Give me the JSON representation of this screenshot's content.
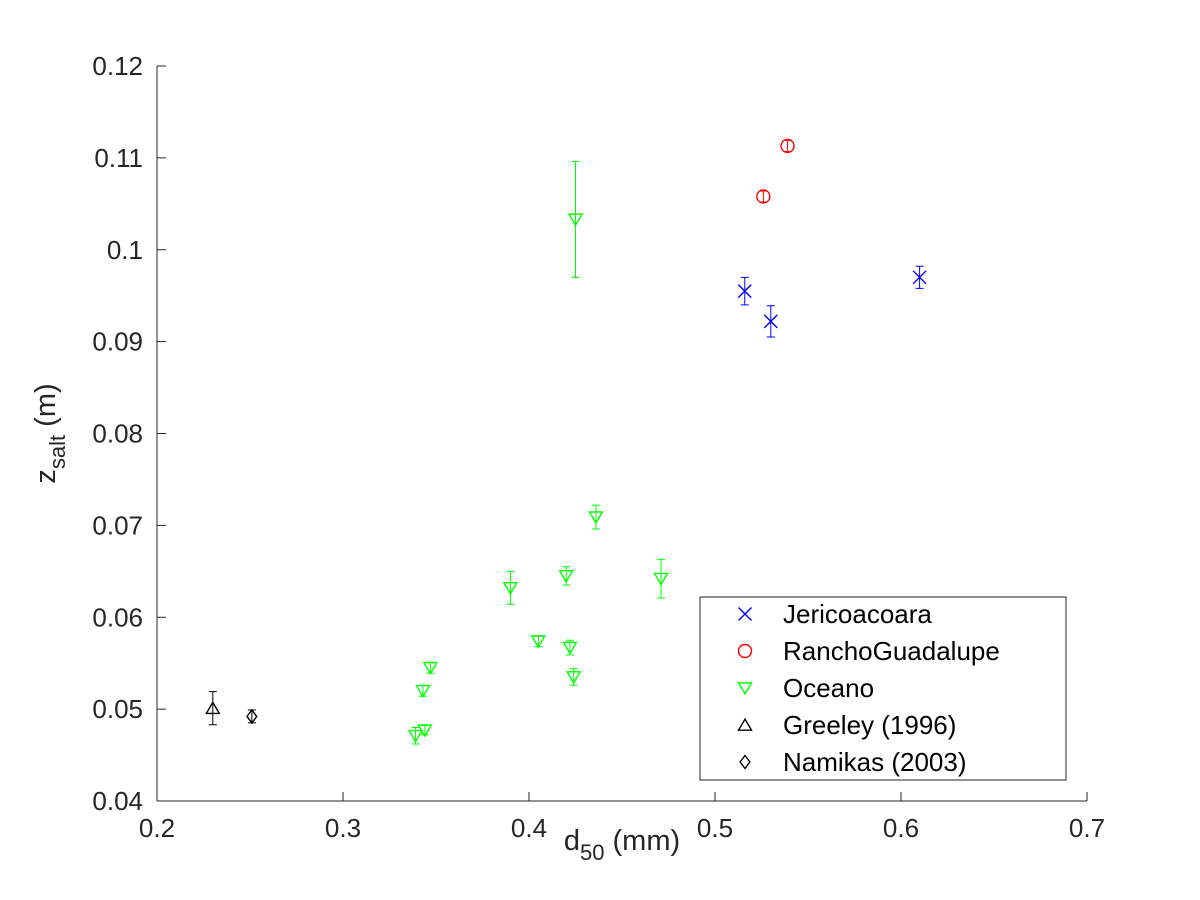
{
  "chart_data": {
    "type": "scatter",
    "xlabel": {
      "main": "d",
      "sub": "50",
      "rest": " (mm)"
    },
    "ylabel": {
      "main": "z",
      "sub": "salt",
      "rest": " (m)"
    },
    "xlim": [
      0.2,
      0.7
    ],
    "ylim": [
      0.04,
      0.12
    ],
    "xticks": [
      0.2,
      0.3,
      0.4,
      0.5,
      0.6,
      0.7
    ],
    "yticks": [
      0.04,
      0.05,
      0.06,
      0.07,
      0.08,
      0.09,
      0.1,
      0.11,
      0.12
    ],
    "xtick_labels": [
      "0.2",
      "0.3",
      "0.4",
      "0.5",
      "0.6",
      "0.7"
    ],
    "ytick_labels": [
      "0.04",
      "0.05",
      "0.06",
      "0.07",
      "0.08",
      "0.09",
      "0.1",
      "0.11",
      "0.12"
    ],
    "grid": false,
    "legend_position": "bottom-right",
    "series": [
      {
        "name": "Jericoacoara",
        "marker": "x",
        "color": "#0000ff",
        "points": [
          {
            "x": 0.516,
            "y": 0.0955,
            "err": 0.0015
          },
          {
            "x": 0.53,
            "y": 0.0922,
            "err": 0.0017
          },
          {
            "x": 0.61,
            "y": 0.097,
            "err": 0.0012
          }
        ]
      },
      {
        "name": "RanchoGuadalupe",
        "marker": "circle",
        "color": "#ff0000",
        "points": [
          {
            "x": 0.526,
            "y": 0.1058,
            "err": 0.0006
          },
          {
            "x": 0.539,
            "y": 0.1113,
            "err": 0.0006
          }
        ]
      },
      {
        "name": "Oceano",
        "marker": "triangle-down",
        "color": "#00ff00",
        "points": [
          {
            "x": 0.425,
            "y": 0.1033,
            "err": 0.0063
          },
          {
            "x": 0.436,
            "y": 0.0709,
            "err": 0.0013
          },
          {
            "x": 0.39,
            "y": 0.0632,
            "err": 0.0018
          },
          {
            "x": 0.42,
            "y": 0.0645,
            "err": 0.001
          },
          {
            "x": 0.471,
            "y": 0.0642,
            "err": 0.0021
          },
          {
            "x": 0.405,
            "y": 0.0574,
            "err": 0.0006
          },
          {
            "x": 0.422,
            "y": 0.0567,
            "err": 0.0008
          },
          {
            "x": 0.424,
            "y": 0.0535,
            "err": 0.0009
          },
          {
            "x": 0.347,
            "y": 0.0545,
            "err": 0.0006
          },
          {
            "x": 0.343,
            "y": 0.052,
            "err": 0.0006
          },
          {
            "x": 0.344,
            "y": 0.0477,
            "err": 0.0005
          },
          {
            "x": 0.339,
            "y": 0.0471,
            "err": 0.0009
          }
        ]
      },
      {
        "name": "Greeley (1996)",
        "marker": "triangle-up",
        "color": "#000000",
        "points": [
          {
            "x": 0.23,
            "y": 0.0501,
            "err": 0.0018
          }
        ]
      },
      {
        "name": "Namikas (2003)",
        "marker": "diamond",
        "color": "#000000",
        "points": [
          {
            "x": 0.251,
            "y": 0.0492,
            "err": 0.0007
          }
        ]
      }
    ]
  }
}
